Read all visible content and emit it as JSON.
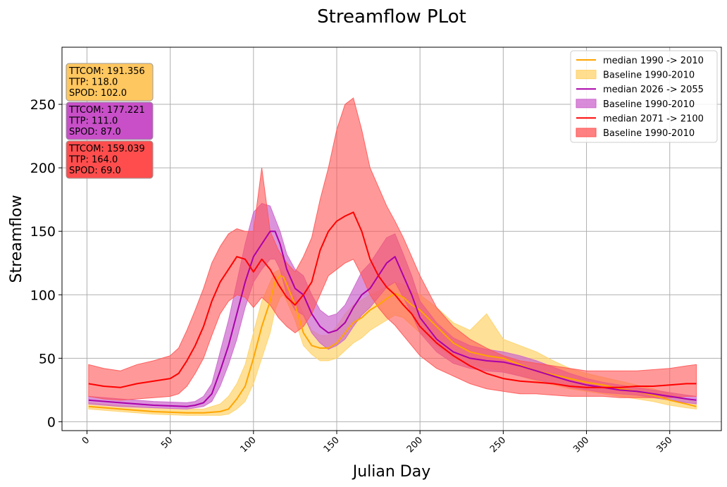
{
  "chart_data": {
    "type": "line",
    "title": "Streamflow PLot",
    "xlabel": "Julian Day",
    "ylabel": "Streamflow",
    "xlim": [
      -15,
      381
    ],
    "ylim": [
      -7,
      295
    ],
    "xticks": [
      0,
      50,
      100,
      150,
      200,
      250,
      300,
      350
    ],
    "yticks": [
      0,
      50,
      100,
      150,
      200,
      250
    ],
    "grid": true,
    "legend_position": "top-right",
    "legend": [
      {
        "label": "median 1990 -> 2010",
        "kind": "line",
        "color": "#ffa500"
      },
      {
        "label": "Baseline 1990-2010",
        "kind": "band",
        "color": "#ffd36b"
      },
      {
        "label": "median 2026 -> 2055",
        "kind": "line",
        "color": "#aa00aa"
      },
      {
        "label": "Baseline 1990-2010",
        "kind": "band",
        "color": "#cc66cc"
      },
      {
        "label": "median 2071 -> 2100",
        "kind": "line",
        "color": "#ff0000"
      },
      {
        "label": "Baseline 1990-2010",
        "kind": "band",
        "color": "#ff5555"
      }
    ],
    "info_boxes": [
      {
        "lines": [
          "TTCOM: 191.356",
          "TTP: 118.0",
          "SPOD: 102.0"
        ],
        "color": "#ffc75f"
      },
      {
        "lines": [
          "TTCOM: 177.221",
          "TTP: 111.0",
          "SPOD: 87.0"
        ],
        "color": "#c84fc8"
      },
      {
        "lines": [
          "TTCOM: 159.039",
          "TTP: 164.0",
          "SPOD: 69.0"
        ],
        "color": "#ff4d4d"
      }
    ],
    "series": [
      {
        "name": "median 1990 -> 2010",
        "color": "#ffa500",
        "band_color": "#ffd36b",
        "band_opacity": 0.7,
        "x": [
          1,
          20,
          40,
          60,
          70,
          80,
          85,
          90,
          95,
          100,
          105,
          110,
          113,
          116,
          118,
          120,
          125,
          130,
          135,
          140,
          145,
          150,
          155,
          160,
          165,
          170,
          175,
          180,
          185,
          190,
          195,
          200,
          210,
          220,
          230,
          240,
          250,
          260,
          270,
          280,
          290,
          300,
          310,
          320,
          330,
          340,
          350,
          360,
          366
        ],
        "median": [
          12,
          10,
          8,
          7,
          7,
          8,
          10,
          18,
          28,
          50,
          75,
          95,
          110,
          115,
          114,
          108,
          92,
          70,
          60,
          58,
          58,
          62,
          70,
          78,
          82,
          88,
          92,
          97,
          101,
          98,
          92,
          88,
          75,
          62,
          55,
          52,
          50,
          45,
          40,
          37,
          34,
          31,
          29,
          26,
          24,
          21,
          17,
          14,
          12
        ],
        "lower": [
          10,
          8,
          6,
          5,
          5,
          5,
          6,
          10,
          16,
          30,
          50,
          70,
          88,
          98,
          100,
          95,
          80,
          60,
          53,
          48,
          48,
          50,
          56,
          62,
          66,
          72,
          76,
          80,
          84,
          82,
          76,
          70,
          60,
          50,
          45,
          42,
          40,
          36,
          32,
          29,
          26,
          24,
          22,
          20,
          18,
          16,
          13,
          11,
          10
        ],
        "upper": [
          15,
          13,
          11,
          10,
          10,
          14,
          20,
          30,
          45,
          70,
          95,
          110,
          118,
          120,
          118,
          112,
          100,
          85,
          72,
          68,
          68,
          75,
          85,
          92,
          96,
          100,
          103,
          107,
          110,
          108,
          103,
          100,
          90,
          78,
          72,
          85,
          65,
          60,
          55,
          48,
          42,
          38,
          35,
          32,
          29,
          26,
          22,
          18,
          15
        ]
      },
      {
        "name": "median 2026 -> 2055",
        "color": "#aa00aa",
        "band_color": "#cc66cc",
        "band_opacity": 0.7,
        "x": [
          1,
          20,
          40,
          60,
          65,
          70,
          75,
          80,
          85,
          90,
          95,
          100,
          105,
          110,
          113,
          116,
          120,
          125,
          130,
          135,
          140,
          145,
          150,
          155,
          160,
          165,
          170,
          175,
          180,
          185,
          190,
          195,
          200,
          210,
          220,
          230,
          240,
          250,
          260,
          270,
          280,
          290,
          300,
          310,
          320,
          330,
          340,
          350,
          360,
          366
        ],
        "median": [
          17,
          15,
          13,
          12,
          13,
          15,
          22,
          40,
          60,
          85,
          110,
          130,
          140,
          150,
          150,
          140,
          120,
          105,
          100,
          85,
          75,
          70,
          72,
          78,
          90,
          100,
          105,
          115,
          125,
          130,
          115,
          100,
          82,
          65,
          55,
          50,
          48,
          47,
          44,
          40,
          36,
          32,
          29,
          27,
          25,
          24,
          22,
          20,
          18,
          17
        ],
        "lower": [
          14,
          12,
          11,
          10,
          11,
          12,
          16,
          28,
          45,
          65,
          90,
          110,
          120,
          128,
          128,
          120,
          100,
          88,
          84,
          70,
          62,
          57,
          60,
          65,
          75,
          84,
          90,
          98,
          106,
          110,
          98,
          85,
          70,
          55,
          46,
          42,
          40,
          39,
          36,
          33,
          30,
          27,
          25,
          23,
          22,
          21,
          19,
          17,
          15,
          14
        ],
        "upper": [
          20,
          18,
          16,
          15,
          16,
          20,
          30,
          55,
          80,
          110,
          140,
          165,
          172,
          170,
          160,
          150,
          132,
          120,
          115,
          100,
          88,
          83,
          85,
          92,
          105,
          118,
          125,
          135,
          145,
          148,
          132,
          115,
          95,
          78,
          66,
          60,
          57,
          55,
          52,
          48,
          43,
          38,
          34,
          31,
          29,
          27,
          25,
          23,
          21,
          20
        ]
      },
      {
        "name": "median 2071 -> 2100",
        "color": "#ff0000",
        "band_color": "#ff5555",
        "band_opacity": 0.6,
        "x": [
          1,
          10,
          20,
          30,
          40,
          50,
          55,
          60,
          65,
          70,
          75,
          80,
          85,
          90,
          95,
          100,
          105,
          110,
          115,
          120,
          125,
          130,
          135,
          140,
          145,
          150,
          155,
          160,
          165,
          170,
          175,
          180,
          185,
          190,
          195,
          200,
          210,
          220,
          230,
          240,
          250,
          260,
          270,
          280,
          290,
          300,
          310,
          320,
          330,
          340,
          350,
          360,
          366
        ],
        "median": [
          30,
          28,
          27,
          30,
          32,
          34,
          38,
          48,
          60,
          75,
          95,
          110,
          120,
          130,
          128,
          118,
          128,
          120,
          108,
          98,
          92,
          100,
          110,
          135,
          150,
          158,
          162,
          165,
          150,
          128,
          115,
          106,
          100,
          92,
          85,
          75,
          62,
          52,
          44,
          38,
          34,
          32,
          31,
          30,
          28,
          27,
          27,
          27,
          28,
          28,
          29,
          30,
          30
        ],
        "lower": [
          20,
          18,
          17,
          18,
          19,
          20,
          22,
          28,
          38,
          50,
          68,
          85,
          95,
          100,
          98,
          90,
          98,
          92,
          82,
          75,
          70,
          75,
          85,
          100,
          115,
          120,
          125,
          128,
          115,
          100,
          90,
          82,
          76,
          68,
          60,
          52,
          42,
          36,
          30,
          26,
          24,
          22,
          22,
          21,
          20,
          20,
          20,
          19,
          19,
          19,
          19,
          20,
          20
        ],
        "upper": [
          45,
          42,
          40,
          45,
          48,
          52,
          58,
          72,
          88,
          105,
          125,
          138,
          148,
          152,
          150,
          150,
          200,
          150,
          135,
          125,
          118,
          130,
          145,
          175,
          200,
          230,
          250,
          255,
          230,
          200,
          185,
          170,
          158,
          145,
          130,
          115,
          90,
          75,
          65,
          58,
          52,
          48,
          46,
          44,
          42,
          40,
          40,
          40,
          40,
          41,
          42,
          44,
          45
        ]
      }
    ]
  }
}
